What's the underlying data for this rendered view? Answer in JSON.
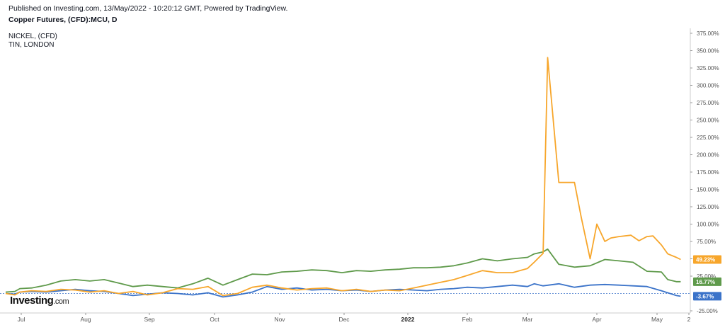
{
  "header": {
    "published": "Published on Investing.com, 13/May/2022 - 10:20:12 GMT, Powered by TradingView.",
    "instrument": "Copper Futures, (CFD):MCU, D"
  },
  "legend": [
    "NICKEL,  (CFD)",
    "TIN, LONDON"
  ],
  "logo": {
    "main": "Investing",
    "suffix": ".com"
  },
  "colors": {
    "nickel": "#f7a62b",
    "tin": "#5f9a4b",
    "copper": "#3b73c9",
    "axis": "#888888"
  },
  "chart_data": {
    "type": "line",
    "y_unit": "%",
    "ylim": [
      -25,
      375
    ],
    "y_ticks": [
      "375.00%",
      "350.00%",
      "325.00%",
      "300.00%",
      "275.00%",
      "250.00%",
      "225.00%",
      "200.00%",
      "175.00%",
      "150.00%",
      "125.00%",
      "100.00%",
      "75.00%",
      "50.00%",
      "25.00%",
      "-25.00%"
    ],
    "x_ticks": [
      "Jul",
      "Aug",
      "Sep",
      "Oct",
      "Nov",
      "Dec",
      "2022",
      "Feb",
      "Mar",
      "Apr",
      "May",
      "2"
    ],
    "x_ticks_bold": [
      "2022"
    ],
    "last_value_labels": [
      "49.23%",
      "16.77%",
      "-3.67%"
    ],
    "series": [
      {
        "name": "NICKEL,  (CFD)",
        "color": "#f7a62b",
        "last_label": "49.23%",
        "x": [
          "2021-06-15",
          "2021-06-22",
          "2021-06-29",
          "2021-07-06",
          "2021-07-13",
          "2021-07-20",
          "2021-07-27",
          "2021-08-03",
          "2021-08-10",
          "2021-08-17",
          "2021-08-24",
          "2021-08-31",
          "2021-09-07",
          "2021-09-14",
          "2021-09-21",
          "2021-09-28",
          "2021-10-05",
          "2021-10-12",
          "2021-10-19",
          "2021-10-26",
          "2021-11-02",
          "2021-11-09",
          "2021-11-16",
          "2021-11-23",
          "2021-11-30",
          "2021-12-07",
          "2021-12-14",
          "2021-12-21",
          "2021-12-28",
          "2022-01-04",
          "2022-01-11",
          "2022-01-18",
          "2022-01-25",
          "2022-02-01",
          "2022-02-08",
          "2022-02-15",
          "2022-02-22",
          "2022-03-01",
          "2022-03-04",
          "2022-03-08",
          "2022-03-10",
          "2022-03-15",
          "2022-03-18",
          "2022-03-22",
          "2022-03-25",
          "2022-03-29",
          "2022-04-01",
          "2022-04-05",
          "2022-04-08",
          "2022-04-12",
          "2022-04-18",
          "2022-04-22",
          "2022-04-26",
          "2022-04-29",
          "2022-05-03",
          "2022-05-06",
          "2022-05-10",
          "2022-05-12"
        ],
        "y": [
          0,
          -2,
          2,
          4,
          3,
          6,
          5,
          2,
          4,
          0,
          3,
          -2,
          1,
          7,
          6,
          10,
          -3,
          0,
          9,
          12,
          8,
          5,
          7,
          8,
          4,
          6,
          3,
          5,
          4,
          8,
          12,
          16,
          20,
          26,
          33,
          30,
          30,
          36,
          45,
          58,
          340,
          160,
          160,
          160,
          110,
          50,
          100,
          75,
          80,
          82,
          84,
          76,
          82,
          83,
          70,
          57,
          52,
          49
        ]
      },
      {
        "name": "TIN, LONDON",
        "color": "#5f9a4b",
        "last_label": "16.77%",
        "x": [
          "2021-06-15",
          "2021-06-22",
          "2021-06-29",
          "2021-07-06",
          "2021-07-13",
          "2021-07-20",
          "2021-07-27",
          "2021-08-03",
          "2021-08-10",
          "2021-08-17",
          "2021-08-24",
          "2021-08-31",
          "2021-09-07",
          "2021-09-14",
          "2021-09-21",
          "2021-09-28",
          "2021-10-05",
          "2021-10-12",
          "2021-10-19",
          "2021-10-26",
          "2021-11-02",
          "2021-11-09",
          "2021-11-16",
          "2021-11-23",
          "2021-11-30",
          "2021-12-07",
          "2021-12-14",
          "2021-12-21",
          "2021-12-28",
          "2022-01-04",
          "2022-01-11",
          "2022-01-18",
          "2022-01-25",
          "2022-02-01",
          "2022-02-08",
          "2022-02-15",
          "2022-02-22",
          "2022-03-01",
          "2022-03-04",
          "2022-03-08",
          "2022-03-10",
          "2022-03-15",
          "2022-03-22",
          "2022-03-29",
          "2022-04-05",
          "2022-04-12",
          "2022-04-19",
          "2022-04-26",
          "2022-05-03",
          "2022-05-06",
          "2022-05-10",
          "2022-05-12"
        ],
        "y": [
          2,
          3,
          7,
          8,
          12,
          18,
          20,
          18,
          20,
          15,
          10,
          12,
          10,
          8,
          14,
          22,
          12,
          20,
          28,
          27,
          31,
          32,
          34,
          33,
          30,
          33,
          32,
          34,
          35,
          37,
          37,
          38,
          40,
          44,
          50,
          47,
          50,
          52,
          57,
          60,
          64,
          42,
          38,
          40,
          49,
          47,
          45,
          32,
          31,
          20,
          17,
          17
        ]
      },
      {
        "name": "",
        "color": "#3b73c9",
        "last_label": "-3.67%",
        "x": [
          "2021-06-15",
          "2021-06-22",
          "2021-06-29",
          "2021-07-06",
          "2021-07-13",
          "2021-07-20",
          "2021-07-27",
          "2021-08-03",
          "2021-08-10",
          "2021-08-17",
          "2021-08-24",
          "2021-08-31",
          "2021-09-07",
          "2021-09-14",
          "2021-09-21",
          "2021-09-28",
          "2021-10-05",
          "2021-10-12",
          "2021-10-19",
          "2021-10-26",
          "2021-11-02",
          "2021-11-09",
          "2021-11-16",
          "2021-11-23",
          "2021-11-30",
          "2021-12-07",
          "2021-12-14",
          "2021-12-21",
          "2021-12-28",
          "2022-01-04",
          "2022-01-11",
          "2022-01-18",
          "2022-01-25",
          "2022-02-01",
          "2022-02-08",
          "2022-02-15",
          "2022-02-22",
          "2022-03-01",
          "2022-03-04",
          "2022-03-08",
          "2022-03-15",
          "2022-03-22",
          "2022-03-29",
          "2022-04-05",
          "2022-04-12",
          "2022-04-19",
          "2022-04-26",
          "2022-05-03",
          "2022-05-10",
          "2022-05-12"
        ],
        "y": [
          0,
          -1,
          2,
          3,
          2,
          4,
          6,
          4,
          3,
          0,
          -3,
          -1,
          1,
          0,
          -2,
          1,
          -5,
          -2,
          2,
          10,
          6,
          8,
          5,
          6,
          4,
          5,
          3,
          5,
          6,
          5,
          4,
          6,
          7,
          9,
          8,
          10,
          12,
          10,
          14,
          11,
          14,
          9,
          12,
          13,
          12,
          11,
          10,
          4,
          -3,
          -4
        ]
      }
    ]
  }
}
